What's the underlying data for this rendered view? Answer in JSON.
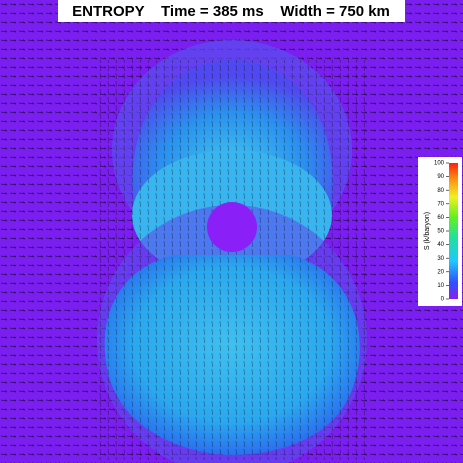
{
  "title": "ENTROPY    Time = 385 ms    Width = 750 km",
  "colorbar": {
    "label": "S (k/baryon)",
    "lim": [
      0,
      100
    ],
    "ticks": [
      0,
      10,
      20,
      30,
      40,
      50,
      60,
      70,
      80,
      90,
      100
    ]
  }
}
